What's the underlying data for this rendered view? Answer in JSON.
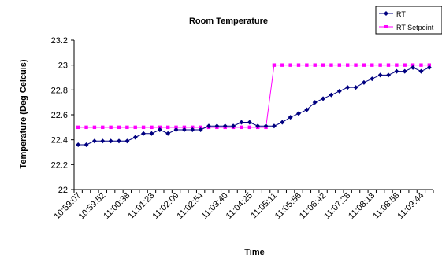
{
  "chart_data": {
    "type": "line",
    "title": "Room Temperature",
    "xlabel": "Time",
    "ylabel": "Temperature (Deg Celcuis)",
    "ylim": [
      22,
      23.2
    ],
    "yticks": [
      22,
      22.2,
      22.4,
      22.6,
      22.8,
      23,
      23.2
    ],
    "grid": false,
    "legend_position": "top-right",
    "x_tick_labels": [
      "10:59:07",
      "10:59:52",
      "11:00:38",
      "11:01:23",
      "11:02:09",
      "11:02:54",
      "11:03:40",
      "11:04:25",
      "11:05:11",
      "11:05:56",
      "11:06:42",
      "11:07:28",
      "11:08:13",
      "11:08:58",
      "11:09:44"
    ],
    "series": [
      {
        "name": "RT",
        "color": "#000080",
        "marker": "diamond",
        "values": [
          22.36,
          22.36,
          22.39,
          22.39,
          22.39,
          22.39,
          22.39,
          22.42,
          22.45,
          22.45,
          22.48,
          22.45,
          22.48,
          22.48,
          22.48,
          22.48,
          22.51,
          22.51,
          22.51,
          22.51,
          22.54,
          22.54,
          22.51,
          22.51,
          22.51,
          22.54,
          22.58,
          22.61,
          22.64,
          22.7,
          22.73,
          22.76,
          22.79,
          22.82,
          22.82,
          22.86,
          22.89,
          22.92,
          22.92,
          22.95,
          22.95,
          22.98,
          22.95,
          22.98
        ]
      },
      {
        "name": "RT Setpoint",
        "color": "#FF00FF",
        "marker": "square",
        "values": [
          22.5,
          22.5,
          22.5,
          22.5,
          22.5,
          22.5,
          22.5,
          22.5,
          22.5,
          22.5,
          22.5,
          22.5,
          22.5,
          22.5,
          22.5,
          22.5,
          22.5,
          22.5,
          22.5,
          22.5,
          22.5,
          22.5,
          22.5,
          22.5,
          23,
          23,
          23,
          23,
          23,
          23,
          23,
          23,
          23,
          23,
          23,
          23,
          23,
          23,
          23,
          23,
          23,
          23,
          23,
          23
        ]
      }
    ]
  }
}
